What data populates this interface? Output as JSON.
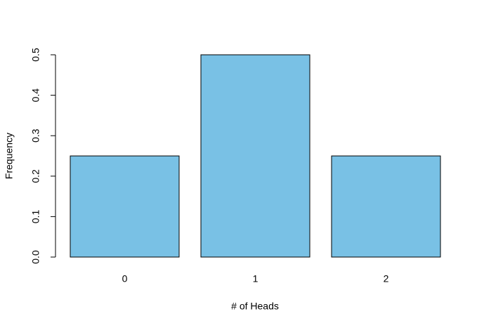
{
  "chart_data": {
    "type": "bar",
    "categories": [
      "0",
      "1",
      "2"
    ],
    "values": [
      0.25,
      0.5,
      0.25
    ],
    "color": "#79c1e5",
    "xlabel": "# of Heads",
    "ylabel": "Frequency",
    "ylim": [
      0,
      0.5
    ],
    "yticks": [
      {
        "value": 0,
        "label": "0.0"
      },
      0.1,
      0.2,
      0.3,
      0.4,
      0.5
    ]
  }
}
